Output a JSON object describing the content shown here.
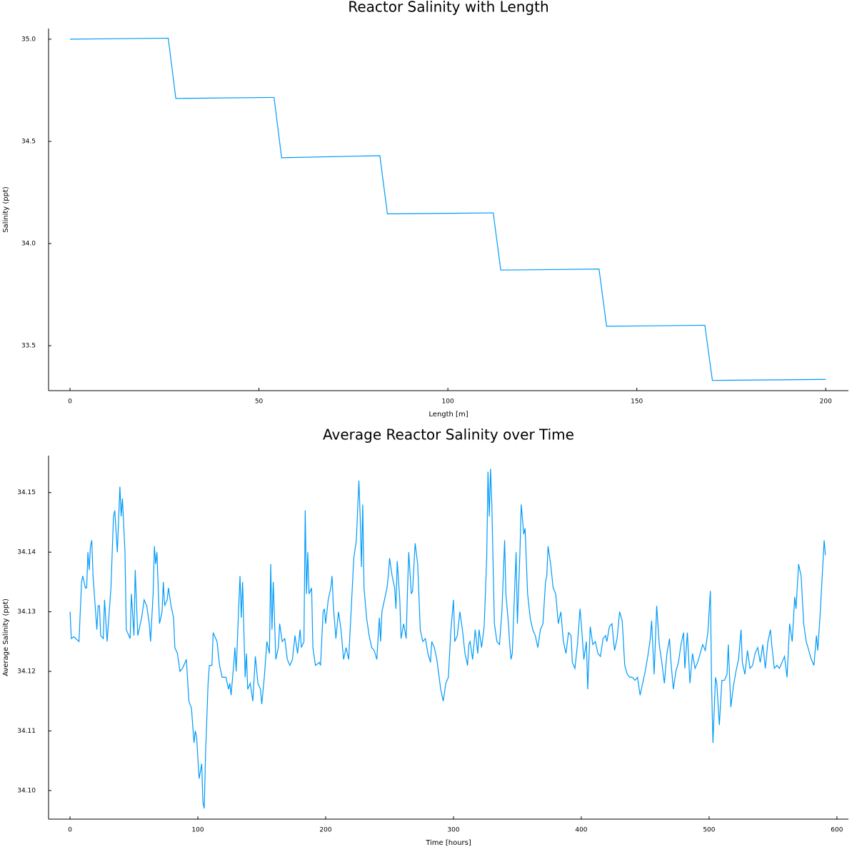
{
  "chart_data": [
    {
      "type": "line",
      "title": "Reactor Salinity with Length",
      "x_label": "Length [m]",
      "y_label": "Salinity (ppt)",
      "color": "#009af9",
      "x": [
        0,
        26,
        28,
        54,
        56,
        82,
        84,
        112,
        114,
        140,
        142,
        168,
        170,
        200
      ],
      "values": [
        35.0,
        35.005,
        34.71,
        34.715,
        34.42,
        34.43,
        34.145,
        34.15,
        33.87,
        33.875,
        33.595,
        33.6,
        33.33,
        33.335
      ],
      "xlim": [
        -5.67,
        206
      ],
      "ylim": [
        33.28,
        35.052
      ],
      "xticks": [
        0,
        50,
        100,
        150,
        200
      ],
      "yticks": [
        {
          "value": 35.0,
          "label": "35.0"
        },
        34.5,
        {
          "value": 34.0,
          "label": "34.0"
        },
        33.5
      ],
      "grid": false
    },
    {
      "type": "line",
      "title": "Average Reactor Salinity over Time",
      "x_label": "Time [hours]",
      "y_label": "Average Salinity (ppt)",
      "color": "#009af9",
      "x": [
        0,
        1,
        3,
        6,
        7,
        9,
        10,
        12,
        13,
        14,
        15,
        16,
        17,
        18,
        20,
        21,
        22,
        23,
        24,
        26,
        27,
        29,
        32,
        34,
        35,
        37,
        39,
        40,
        41,
        43,
        44,
        46,
        47,
        48,
        50,
        51,
        53,
        56,
        58,
        60,
        62,
        63,
        65,
        66,
        67,
        68,
        70,
        72,
        73,
        74,
        76,
        77,
        79,
        81,
        82,
        84,
        86,
        88,
        91,
        93,
        95,
        97,
        98,
        99,
        101,
        103,
        104,
        105,
        106,
        108,
        109,
        111,
        112,
        115,
        117,
        119,
        122,
        124,
        125,
        126,
        128,
        129,
        130,
        132,
        133,
        134,
        135,
        137,
        138,
        139,
        141,
        143,
        145,
        147,
        149,
        150,
        152,
        154,
        156,
        157,
        158,
        159,
        161,
        163,
        164,
        166,
        168,
        170,
        172,
        174,
        176,
        178,
        180,
        181,
        183,
        184,
        185,
        186,
        187,
        189,
        190,
        192,
        195,
        196,
        198,
        199,
        200,
        202,
        204,
        205,
        206,
        208,
        210,
        212,
        214,
        216,
        218,
        220,
        222,
        224,
        225,
        226,
        227,
        228,
        229,
        230,
        232,
        234,
        236,
        238,
        240,
        242,
        243,
        244,
        246,
        248,
        249,
        250,
        252,
        254,
        255,
        256,
        258,
        259,
        261,
        263,
        264,
        265,
        267,
        268,
        270,
        272,
        274,
        276,
        278,
        280,
        282,
        283,
        285,
        287,
        290,
        292,
        294,
        296,
        298,
        300,
        301,
        303,
        305,
        307,
        309,
        311,
        312,
        313,
        315,
        317,
        319,
        320,
        322,
        324,
        326,
        327,
        328,
        329,
        330,
        332,
        334,
        336,
        338,
        340,
        341,
        343,
        344,
        345,
        346,
        348,
        349,
        350,
        352,
        353,
        355,
        356,
        358,
        360,
        362,
        364,
        366,
        368,
        370,
        372,
        373,
        374,
        376,
        378,
        380,
        382,
        384,
        386,
        388,
        390,
        392,
        393,
        395,
        397,
        399,
        400,
        402,
        404,
        405,
        407,
        409,
        411,
        413,
        415,
        417,
        419,
        420,
        422,
        424,
        426,
        428,
        430,
        432,
        434,
        436,
        438,
        440,
        442,
        444,
        446,
        448,
        450,
        452,
        454,
        455,
        457,
        459,
        461,
        463,
        465,
        467,
        469,
        470,
        472,
        474,
        476,
        478,
        480,
        481,
        483,
        485,
        487,
        489,
        491,
        493,
        495,
        497,
        499,
        501,
        502,
        503,
        505,
        506,
        508,
        510,
        512,
        514,
        515,
        517,
        519,
        521,
        523,
        525,
        526,
        528,
        530,
        532,
        534,
        536,
        538,
        540,
        542,
        544,
        546,
        548,
        549,
        551,
        553,
        555,
        557,
        559,
        561,
        563,
        565,
        567,
        568,
        570,
        572,
        574,
        576,
        578,
        580,
        582,
        584,
        585,
        587,
        589,
        590,
        591
      ],
      "values": [
        34.13,
        34.1255,
        34.1258,
        34.1252,
        34.125,
        34.135,
        34.136,
        34.134,
        34.134,
        34.14,
        34.137,
        34.141,
        34.142,
        34.136,
        34.13,
        34.127,
        34.131,
        34.131,
        34.126,
        34.1255,
        34.132,
        34.125,
        34.134,
        34.146,
        34.147,
        34.14,
        34.151,
        34.146,
        34.149,
        34.14,
        34.127,
        34.126,
        34.1255,
        34.133,
        34.126,
        34.137,
        34.126,
        34.129,
        34.132,
        34.131,
        34.128,
        34.125,
        34.133,
        34.141,
        34.138,
        34.14,
        34.128,
        34.13,
        34.135,
        34.131,
        34.132,
        34.134,
        34.131,
        34.129,
        34.124,
        34.123,
        34.12,
        34.1205,
        34.122,
        34.115,
        34.1138,
        34.108,
        34.11,
        34.109,
        34.102,
        34.1045,
        34.098,
        34.097,
        34.106,
        34.118,
        34.121,
        34.121,
        34.1265,
        34.125,
        34.121,
        34.119,
        34.119,
        34.117,
        34.118,
        34.116,
        34.121,
        34.124,
        34.12,
        34.131,
        34.136,
        34.129,
        34.135,
        34.119,
        34.123,
        34.117,
        34.118,
        34.115,
        34.1225,
        34.118,
        34.117,
        34.1145,
        34.119,
        34.125,
        34.123,
        34.138,
        34.127,
        34.135,
        34.122,
        34.124,
        34.128,
        34.125,
        34.1255,
        34.122,
        34.121,
        34.122,
        34.126,
        34.123,
        34.127,
        34.124,
        34.125,
        34.147,
        34.133,
        34.14,
        34.133,
        34.134,
        34.124,
        34.121,
        34.1215,
        34.121,
        34.13,
        34.1305,
        34.128,
        34.132,
        34.134,
        34.136,
        34.131,
        34.1255,
        34.13,
        34.127,
        34.122,
        34.124,
        34.122,
        34.1305,
        34.139,
        34.142,
        34.147,
        34.152,
        34.146,
        34.1375,
        34.148,
        34.134,
        34.129,
        34.126,
        34.124,
        34.1235,
        34.122,
        34.129,
        34.125,
        34.13,
        34.132,
        34.134,
        34.136,
        34.139,
        34.136,
        34.134,
        34.1305,
        34.1385,
        34.132,
        34.1255,
        34.128,
        34.1255,
        34.1335,
        34.14,
        34.133,
        34.1335,
        34.1415,
        34.138,
        34.127,
        34.125,
        34.1255,
        34.123,
        34.1215,
        34.125,
        34.124,
        34.122,
        34.117,
        34.115,
        34.118,
        34.119,
        34.127,
        34.132,
        34.125,
        34.126,
        34.13,
        34.127,
        34.123,
        34.121,
        34.1245,
        34.125,
        34.122,
        34.127,
        34.123,
        34.127,
        34.124,
        34.1275,
        34.139,
        34.1535,
        34.146,
        34.154,
        34.148,
        34.128,
        34.125,
        34.1245,
        34.1305,
        34.142,
        34.133,
        34.128,
        34.1245,
        34.122,
        34.123,
        34.1345,
        34.14,
        34.128,
        34.14,
        34.148,
        34.143,
        34.144,
        34.133,
        34.129,
        34.127,
        34.126,
        34.124,
        34.127,
        34.128,
        34.135,
        34.136,
        34.141,
        34.138,
        34.134,
        34.133,
        34.128,
        34.13,
        34.125,
        34.123,
        34.1265,
        34.126,
        34.1215,
        34.1205,
        34.1245,
        34.1305,
        34.128,
        34.122,
        34.125,
        34.117,
        34.1275,
        34.1245,
        34.125,
        34.123,
        34.1225,
        34.1255,
        34.126,
        34.125,
        34.1275,
        34.128,
        34.1235,
        34.1255,
        34.13,
        34.1285,
        34.121,
        34.1195,
        34.119,
        34.119,
        34.1185,
        34.119,
        34.116,
        34.118,
        34.12,
        34.1225,
        34.1255,
        34.1285,
        34.1195,
        34.131,
        34.1245,
        34.1215,
        34.118,
        34.123,
        34.1255,
        34.122,
        34.117,
        34.12,
        34.1215,
        34.1245,
        34.1265,
        34.1205,
        34.1265,
        34.118,
        34.123,
        34.1205,
        34.1215,
        34.123,
        34.1245,
        34.1235,
        34.1265,
        34.1335,
        34.117,
        34.108,
        34.119,
        34.118,
        34.111,
        34.1185,
        34.1185,
        34.1195,
        34.1245,
        34.114,
        34.1175,
        34.12,
        34.122,
        34.127,
        34.1215,
        34.1195,
        34.1235,
        34.1205,
        34.121,
        34.123,
        34.124,
        34.1215,
        34.1245,
        34.1205,
        34.125,
        34.127,
        34.1245,
        34.1205,
        34.121,
        34.1205,
        34.1215,
        34.1225,
        34.119,
        34.128,
        34.125,
        34.1325,
        34.1305,
        34.138,
        34.136,
        34.128,
        34.125,
        34.1235,
        34.122,
        34.121,
        34.126,
        34.1235,
        34.13,
        34.138,
        34.142,
        34.1395
      ],
      "xlim": [
        -16.8,
        609
      ],
      "ylim": [
        34.0952,
        34.1562
      ],
      "xticks": [
        0,
        100,
        200,
        300,
        400,
        500,
        600
      ],
      "yticks": [
        {
          "value": 34.1,
          "label": "34.10"
        },
        34.11,
        34.12,
        34.13,
        34.14,
        34.15
      ],
      "grid": false
    }
  ]
}
